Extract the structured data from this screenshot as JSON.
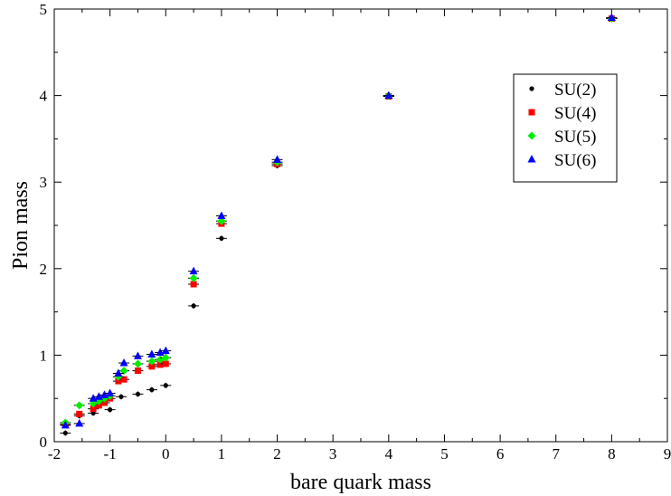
{
  "chart_data": {
    "type": "scatter",
    "title": "",
    "xlabel": "bare quark mass",
    "ylabel": "Pion mass",
    "xlim": [
      -2,
      9
    ],
    "ylim": [
      0,
      5
    ],
    "x_ticks": [
      "-2",
      "-1",
      "0",
      "1",
      "2",
      "3",
      "4",
      "5",
      "6",
      "7",
      "8",
      "9"
    ],
    "y_ticks": [
      "0",
      "1",
      "2",
      "3",
      "4",
      "5"
    ],
    "grid": false,
    "legend_position": "top-right",
    "series": [
      {
        "name": "SU(2)",
        "color": "#000000",
        "marker": "circle",
        "points": [
          [
            -1.8,
            0.1
          ],
          [
            -1.55,
            0.3
          ],
          [
            -1.3,
            0.33
          ],
          [
            -1.0,
            0.37
          ],
          [
            -0.8,
            0.52
          ],
          [
            -0.5,
            0.55
          ],
          [
            -0.25,
            0.6
          ],
          [
            0.0,
            0.65
          ],
          [
            0.5,
            1.57
          ],
          [
            1.0,
            2.35
          ],
          [
            2.0,
            3.19
          ],
          [
            4.0,
            3.99
          ],
          [
            8.0,
            4.89
          ]
        ]
      },
      {
        "name": "SU(4)",
        "color": "#ff0000",
        "marker": "square",
        "points": [
          [
            -1.8,
            0.2
          ],
          [
            -1.55,
            0.32
          ],
          [
            -1.3,
            0.38
          ],
          [
            -1.2,
            0.42
          ],
          [
            -1.1,
            0.45
          ],
          [
            -1.0,
            0.5
          ],
          [
            -0.85,
            0.7
          ],
          [
            -0.75,
            0.72
          ],
          [
            -0.5,
            0.82
          ],
          [
            -0.25,
            0.87
          ],
          [
            -0.1,
            0.89
          ],
          [
            0.0,
            0.9
          ],
          [
            0.5,
            1.82
          ],
          [
            1.0,
            2.52
          ],
          [
            2.0,
            3.21
          ],
          [
            4.0,
            3.99
          ],
          [
            8.0,
            4.89
          ]
        ]
      },
      {
        "name": "SU(5)",
        "color": "#00ee00",
        "marker": "diamond",
        "points": [
          [
            -1.8,
            0.22
          ],
          [
            -1.55,
            0.42
          ],
          [
            -1.3,
            0.44
          ],
          [
            -1.2,
            0.47
          ],
          [
            -1.1,
            0.5
          ],
          [
            -1.0,
            0.53
          ],
          [
            -0.85,
            0.75
          ],
          [
            -0.75,
            0.82
          ],
          [
            -0.5,
            0.9
          ],
          [
            -0.25,
            0.93
          ],
          [
            -0.1,
            0.95
          ],
          [
            0.0,
            0.97
          ],
          [
            0.5,
            1.89
          ],
          [
            1.0,
            2.55
          ],
          [
            2.0,
            3.23
          ],
          [
            4.0,
            4.0
          ],
          [
            8.0,
            4.89
          ]
        ]
      },
      {
        "name": "SU(6)",
        "color": "#0000ff",
        "marker": "triangle",
        "points": [
          [
            -1.8,
            0.19
          ],
          [
            -1.55,
            0.21
          ],
          [
            -1.3,
            0.5
          ],
          [
            -1.2,
            0.52
          ],
          [
            -1.1,
            0.54
          ],
          [
            -1.0,
            0.56
          ],
          [
            -0.85,
            0.79
          ],
          [
            -0.75,
            0.91
          ],
          [
            -0.5,
            0.99
          ],
          [
            -0.25,
            1.01
          ],
          [
            -0.1,
            1.03
          ],
          [
            0.0,
            1.05
          ],
          [
            0.5,
            1.97
          ],
          [
            1.0,
            2.61
          ],
          [
            2.0,
            3.26
          ],
          [
            4.0,
            4.0
          ],
          [
            8.0,
            4.9
          ]
        ]
      }
    ]
  }
}
